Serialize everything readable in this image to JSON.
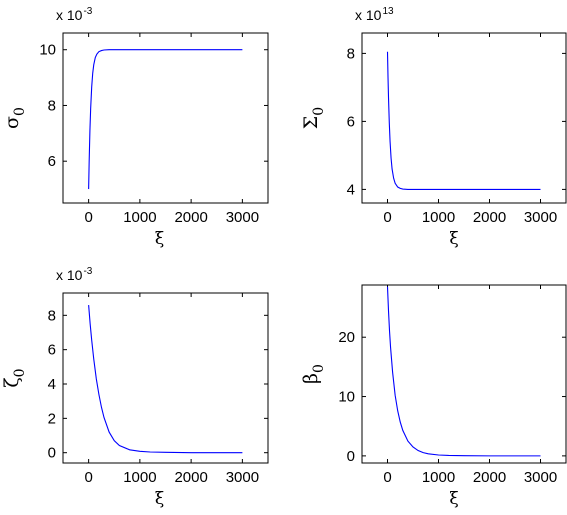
{
  "chart_data": [
    {
      "type": "line",
      "xlabel": "ξ",
      "ylabel": "σ",
      "ylabel_sub": "0",
      "multiplier_base": "x 10",
      "multiplier_exp": "-3",
      "xlim": [
        -500,
        3500
      ],
      "ylim": [
        4.5,
        10.6
      ],
      "xticks": [
        0,
        1000,
        2000,
        3000
      ],
      "yticks": [
        6,
        8,
        10
      ],
      "series": [
        {
          "color": "#0000ff",
          "x": [
            0,
            10,
            25,
            40,
            60,
            80,
            100,
            130,
            160,
            200,
            250,
            300,
            400,
            500,
            700,
            1000,
            1500,
            2000,
            2500,
            3000
          ],
          "y": [
            5.0,
            5.95,
            7.09,
            7.9,
            8.67,
            9.16,
            9.46,
            9.72,
            9.84,
            9.93,
            9.97,
            9.99,
            10.0,
            10.0,
            10.0,
            10.0,
            10.0,
            10.0,
            10.0,
            10.0
          ]
        }
      ]
    },
    {
      "type": "line",
      "xlabel": "ξ",
      "ylabel": "Σ",
      "ylabel_sub": "0",
      "multiplier_base": "x 10",
      "multiplier_exp": "13",
      "xlim": [
        -500,
        3500
      ],
      "ylim": [
        3.6,
        8.6
      ],
      "xticks": [
        0,
        1000,
        2000,
        3000
      ],
      "yticks": [
        4,
        6,
        8
      ],
      "series": [
        {
          "color": "#0000ff",
          "x": [
            0,
            10,
            20,
            35,
            50,
            70,
            90,
            120,
            150,
            200,
            250,
            300,
            400,
            600,
            1000,
            1500,
            2000,
            2500,
            3000
          ],
          "y": [
            8.05,
            7.3,
            6.69,
            5.96,
            5.42,
            4.92,
            4.6,
            4.33,
            4.18,
            4.07,
            4.03,
            4.01,
            4.0,
            4.0,
            4.0,
            4.0,
            4.0,
            4.0,
            4.0
          ]
        }
      ]
    },
    {
      "type": "line",
      "xlabel": "ξ",
      "ylabel": "ζ",
      "ylabel_sub": "0",
      "multiplier_base": "x 10",
      "multiplier_exp": "-3",
      "xlim": [
        -500,
        3500
      ],
      "ylim": [
        -0.6,
        9.3
      ],
      "xticks": [
        0,
        1000,
        2000,
        3000
      ],
      "yticks": [
        0,
        2,
        4,
        6,
        8
      ],
      "series": [
        {
          "color": "#0000ff",
          "x": [
            0,
            30,
            60,
            100,
            150,
            200,
            250,
            300,
            400,
            500,
            600,
            800,
            1000,
            1200,
            1500,
            2000,
            2500,
            3000
          ],
          "y": [
            8.6,
            7.5,
            6.55,
            5.45,
            4.3,
            3.4,
            2.65,
            2.05,
            1.2,
            0.7,
            0.42,
            0.17,
            0.08,
            0.04,
            0.02,
            0.0,
            0.0,
            0.0
          ]
        }
      ]
    },
    {
      "type": "line",
      "xlabel": "ξ",
      "ylabel": "β",
      "ylabel_sub": "0",
      "xlim": [
        -500,
        3500
      ],
      "ylim": [
        -1.2,
        28.8
      ],
      "xticks": [
        0,
        1000,
        2000,
        3000
      ],
      "yticks": [
        0,
        10,
        20
      ],
      "series": [
        {
          "color": "#0000ff",
          "x": [
            0,
            20,
            40,
            60,
            100,
            150,
            200,
            250,
            300,
            400,
            500,
            600,
            700,
            800,
            1000,
            1200,
            1500,
            2000,
            2500,
            3000
          ],
          "y": [
            28.5,
            24.4,
            21.0,
            18.3,
            14.1,
            10.2,
            7.6,
            5.7,
            4.3,
            2.5,
            1.5,
            0.9,
            0.55,
            0.35,
            0.15,
            0.07,
            0.03,
            0.0,
            0.0,
            0.0
          ]
        }
      ]
    }
  ]
}
